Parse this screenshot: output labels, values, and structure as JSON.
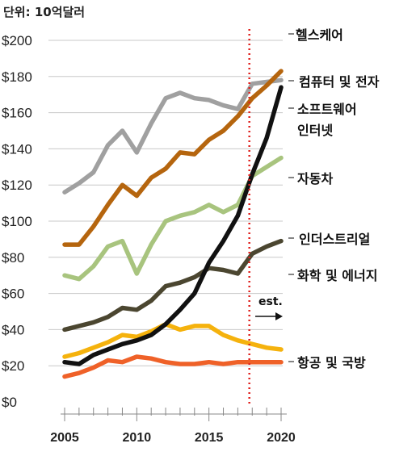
{
  "chart_data": {
    "type": "line",
    "unit_label": "단위: 10억달러",
    "x": [
      2005,
      2006,
      2007,
      2008,
      2009,
      2010,
      2011,
      2012,
      2013,
      2014,
      2015,
      2016,
      2017,
      2018,
      2019,
      2020
    ],
    "x_ticks": [
      "2005",
      "2010",
      "2015",
      "2020"
    ],
    "y_ticks": [
      "$0",
      "$20",
      "$40",
      "$60",
      "$80",
      "$100",
      "$120",
      "$140",
      "$160",
      "$180",
      "$200"
    ],
    "ylim": [
      0,
      200
    ],
    "xlim": [
      2005,
      2020
    ],
    "grid": true,
    "estimate_year": 2017.8,
    "estimate_label": "est.",
    "series": [
      {
        "name": "헬스케어",
        "color": "#b5650e",
        "values": [
          87,
          87,
          97,
          109,
          120,
          114,
          124,
          129,
          138,
          137,
          145,
          150,
          158,
          168,
          175,
          183
        ]
      },
      {
        "name": "컴퓨터 및 전자",
        "color": "#a0a0a0",
        "values": [
          116,
          121,
          127,
          142,
          150,
          138,
          154,
          168,
          171,
          168,
          167,
          164,
          162,
          176,
          177,
          178
        ]
      },
      {
        "name": "소프트웨어 인터넷",
        "color": "#111111",
        "values": [
          22,
          21,
          26,
          29,
          32,
          34,
          37,
          43,
          51,
          60,
          77,
          89,
          103,
          126,
          146,
          174
        ]
      },
      {
        "name": "자동차",
        "color": "#a8c47e",
        "values": [
          70,
          68,
          75,
          86,
          89,
          71,
          87,
          100,
          103,
          105,
          109,
          105,
          109,
          125,
          130,
          135
        ]
      },
      {
        "name": "인더스트리얼",
        "color": "#4b4630",
        "values": [
          40,
          42,
          44,
          47,
          52,
          51,
          56,
          64,
          66,
          69,
          74,
          73,
          71,
          82,
          86,
          89
        ]
      },
      {
        "name": "화학 및 에너지",
        "color": "#f5b20d",
        "values": [
          25,
          27,
          30,
          33,
          37,
          36,
          39,
          43,
          40,
          42,
          42,
          37,
          34,
          32,
          30,
          29
        ]
      },
      {
        "name": "항공 및 국방",
        "color": "#ef6128",
        "values": [
          14,
          16,
          19,
          23,
          22,
          25,
          24,
          22,
          21,
          21,
          22,
          21,
          22,
          22,
          22,
          22
        ]
      }
    ],
    "labels": [
      {
        "text": "헬스케어",
        "series": 0
      },
      {
        "text": "컴퓨터 및 전자",
        "series": 1
      },
      {
        "text": "소프트웨어",
        "series": 2
      },
      {
        "text": "인터넷",
        "series": 2
      },
      {
        "text": "자동차",
        "series": 3
      },
      {
        "text": "인더스트리얼",
        "series": 4
      },
      {
        "text": "화학 및 에너지",
        "series": 5
      },
      {
        "text": "항공 및 국방",
        "series": 6
      }
    ]
  }
}
